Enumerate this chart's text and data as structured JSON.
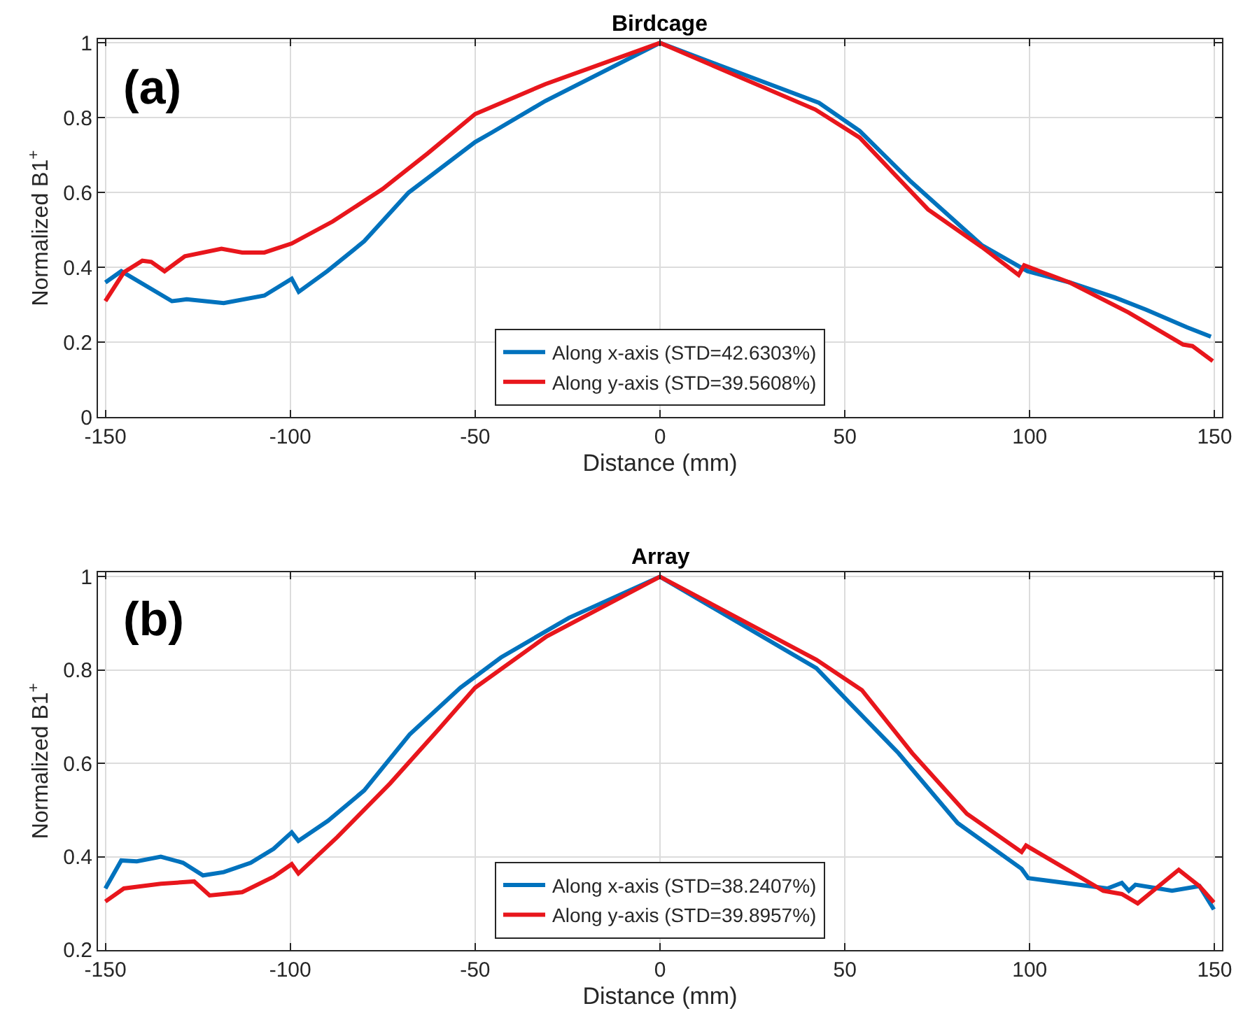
{
  "chart_data": [
    {
      "type": "line",
      "title": "Birdcage",
      "xlabel": "Distance (mm)",
      "ylabel": "Normalized B1$^{+}$",
      "annotations": [
        "(a)"
      ],
      "xlim": [
        -152,
        152
      ],
      "xticks": [
        -150,
        -100,
        -50,
        0,
        50,
        100,
        150
      ],
      "ylim": [
        0,
        1.01
      ],
      "yticks": [
        0,
        0.2,
        0.4,
        0.6,
        0.8,
        1
      ],
      "grid": true,
      "legend": "bottom",
      "line_style": "solid",
      "series": [
        {
          "name": "Along x-axis (STD=42.6303%)",
          "color": "#0072bd",
          "x": [
            -150,
            -145.7,
            -132,
            -128,
            -118,
            -107,
            -99.6,
            -97.7,
            -90,
            -80,
            -68,
            -50,
            -45.6,
            -31,
            0,
            43,
            54,
            67.8,
            87,
            99.4,
            110.8,
            123,
            131.5,
            142.6,
            149
          ],
          "values": [
            0.36,
            0.39,
            0.31,
            0.315,
            0.305,
            0.325,
            0.37,
            0.335,
            0.39,
            0.47,
            0.6,
            0.735,
            0.76,
            0.845,
            1.0,
            0.84,
            0.765,
            0.63,
            0.46,
            0.39,
            0.36,
            0.32,
            0.287,
            0.24,
            0.215
          ]
        },
        {
          "name": "Along y-axis (STD=39.5608%)",
          "color": "#e8161c",
          "x": [
            -150,
            -145,
            -140,
            -137.6,
            -134,
            -128.5,
            -118.6,
            -113,
            -107,
            -99.6,
            -88.5,
            -75,
            -62.8,
            -50,
            -31,
            0,
            42,
            54,
            72.5,
            87,
            97,
            98.5,
            110.8,
            126.7,
            141.5,
            144,
            149.5
          ],
          "values": [
            0.31,
            0.387,
            0.418,
            0.415,
            0.39,
            0.43,
            0.45,
            0.44,
            0.44,
            0.464,
            0.523,
            0.61,
            0.705,
            0.81,
            0.89,
            1.0,
            0.822,
            0.747,
            0.555,
            0.455,
            0.38,
            0.406,
            0.36,
            0.28,
            0.194,
            0.19,
            0.15
          ]
        }
      ]
    },
    {
      "type": "line",
      "title": "Array",
      "xlabel": "Distance (mm)",
      "ylabel": "Normalized B1$^{+}$",
      "annotations": [
        "(b)"
      ],
      "xlim": [
        -152,
        152
      ],
      "xticks": [
        -150,
        -100,
        -50,
        0,
        50,
        100,
        150
      ],
      "ylim": [
        0.2,
        1.01
      ],
      "yticks": [
        0.2,
        0.4,
        0.6,
        0.8,
        1
      ],
      "grid": true,
      "legend": "bottom",
      "line_style": "solid",
      "series": [
        {
          "name": "Along x-axis (STD=38.2407%)",
          "color": "#0072bd",
          "x": [
            -150,
            -145.7,
            -141.5,
            -135,
            -129,
            -123.6,
            -118,
            -110.7,
            -104.5,
            -99.6,
            -97.8,
            -89.8,
            -80,
            -67.7,
            -54,
            -43,
            -24.6,
            0,
            42.3,
            51,
            64.5,
            80.5,
            97.8,
            99.6,
            121,
            124.9,
            126.8,
            128.6,
            138.5,
            145.9,
            149.8
          ],
          "values": [
            0.332,
            0.392,
            0.39,
            0.4,
            0.387,
            0.36,
            0.367,
            0.387,
            0.417,
            0.452,
            0.434,
            0.477,
            0.542,
            0.662,
            0.762,
            0.827,
            0.912,
            1.0,
            0.804,
            0.732,
            0.622,
            0.472,
            0.374,
            0.354,
            0.332,
            0.344,
            0.327,
            0.34,
            0.327,
            0.337,
            0.287
          ]
        },
        {
          "name": "Along y-axis (STD=39.8957%)",
          "color": "#e8161c",
          "x": [
            -150,
            -145,
            -135,
            -126,
            -121.8,
            -113,
            -104.5,
            -99.6,
            -97.8,
            -87.3,
            -73,
            -60,
            -50,
            -30.7,
            0,
            42.3,
            54.6,
            68.2,
            83,
            97.8,
            99,
            119.9,
            124.9,
            129.2,
            140.3,
            145.9,
            149.8
          ],
          "values": [
            0.304,
            0.332,
            0.342,
            0.347,
            0.317,
            0.324,
            0.357,
            0.384,
            0.364,
            0.442,
            0.557,
            0.672,
            0.762,
            0.872,
            1.0,
            0.822,
            0.757,
            0.622,
            0.492,
            0.41,
            0.424,
            0.327,
            0.32,
            0.3,
            0.372,
            0.337,
            0.302
          ]
        }
      ]
    }
  ]
}
